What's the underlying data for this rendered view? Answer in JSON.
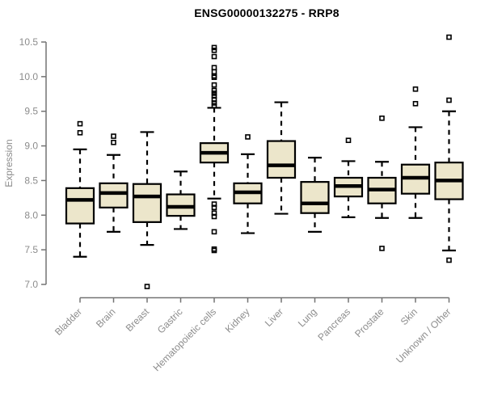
{
  "title": "ENSG00000132275 - RRP8",
  "chart_data": {
    "type": "boxplot",
    "title": "ENSG00000132275 - RRP8",
    "ylabel": "Expression",
    "ylim": [
      7.0,
      10.5
    ],
    "yticks": [
      7.0,
      7.5,
      8.0,
      8.5,
      9.0,
      9.5,
      10.0,
      10.5
    ],
    "grid": false,
    "categories": [
      "Bladder",
      "Brain",
      "Breast",
      "Gastric",
      "Hematopoietic cells",
      "Kidney",
      "Liver",
      "Lung",
      "Pancreas",
      "Prostate",
      "Skin",
      "Unknown / Other"
    ],
    "series": [
      {
        "category": "Bladder",
        "whisker_low": 7.4,
        "q1": 7.88,
        "median": 8.22,
        "q3": 8.39,
        "whisker_high": 8.95,
        "outliers": [
          9.32,
          9.19
        ]
      },
      {
        "category": "Brain",
        "whisker_low": 7.76,
        "q1": 8.11,
        "median": 8.32,
        "q3": 8.46,
        "whisker_high": 8.87,
        "outliers": [
          9.14,
          9.05
        ]
      },
      {
        "category": "Breast",
        "whisker_low": 7.57,
        "q1": 7.9,
        "median": 8.27,
        "q3": 8.45,
        "whisker_high": 9.2,
        "outliers": [
          6.97
        ]
      },
      {
        "category": "Gastric",
        "whisker_low": 7.8,
        "q1": 7.99,
        "median": 8.12,
        "q3": 8.3,
        "whisker_high": 8.63,
        "outliers": []
      },
      {
        "category": "Hematopoietic cells",
        "whisker_low": 8.24,
        "q1": 8.76,
        "median": 8.9,
        "q3": 9.04,
        "whisker_high": 9.55,
        "outliers": [
          10.42,
          10.38,
          10.29,
          10.13,
          10.07,
          10.01,
          9.99,
          9.88,
          9.8,
          9.76,
          9.72,
          9.67,
          9.62,
          9.58,
          8.16,
          8.11,
          8.03,
          7.98,
          7.76,
          7.51,
          7.49
        ]
      },
      {
        "category": "Kidney",
        "whisker_low": 7.74,
        "q1": 8.17,
        "median": 8.33,
        "q3": 8.46,
        "whisker_high": 8.88,
        "outliers": [
          9.13
        ]
      },
      {
        "category": "Liver",
        "whisker_low": 8.02,
        "q1": 8.54,
        "median": 8.72,
        "q3": 9.07,
        "whisker_high": 9.63,
        "outliers": []
      },
      {
        "category": "Lung",
        "whisker_low": 7.76,
        "q1": 8.03,
        "median": 8.17,
        "q3": 8.48,
        "whisker_high": 8.83,
        "outliers": []
      },
      {
        "category": "Pancreas",
        "whisker_low": 7.97,
        "q1": 8.27,
        "median": 8.42,
        "q3": 8.54,
        "whisker_high": 8.78,
        "outliers": [
          9.08
        ]
      },
      {
        "category": "Prostate",
        "whisker_low": 7.96,
        "q1": 8.17,
        "median": 8.37,
        "q3": 8.54,
        "whisker_high": 8.77,
        "outliers": [
          9.4,
          7.52
        ]
      },
      {
        "category": "Skin",
        "whisker_low": 7.96,
        "q1": 8.31,
        "median": 8.54,
        "q3": 8.73,
        "whisker_high": 9.27,
        "outliers": [
          9.82,
          9.61
        ]
      },
      {
        "category": "Unknown / Other",
        "whisker_low": 7.49,
        "q1": 8.23,
        "median": 8.5,
        "q3": 8.76,
        "whisker_high": 9.5,
        "outliers": [
          10.57,
          9.66,
          7.35
        ]
      }
    ],
    "colors": {
      "box_fill": "#ECE6CB",
      "box_border": "#000000",
      "median": "#000000",
      "whisker": "#000000",
      "outlier": "#000000",
      "axis_line": "#737373",
      "axis_text": "#8C8C8C",
      "title": "#000000"
    }
  }
}
